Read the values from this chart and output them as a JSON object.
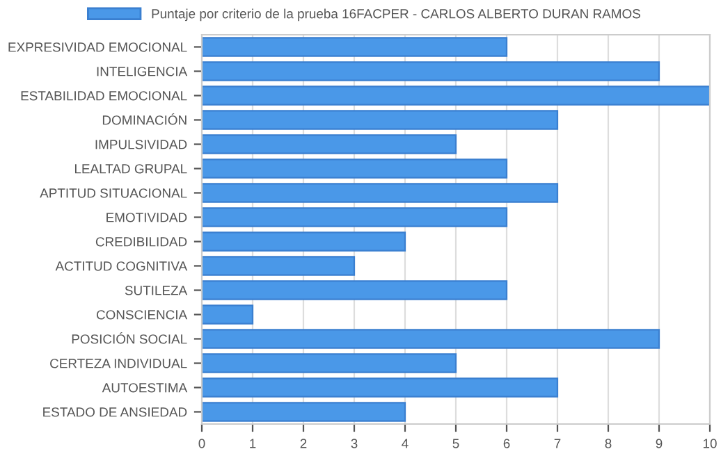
{
  "chart_data": {
    "type": "bar",
    "orientation": "horizontal",
    "categories": [
      "EXPRESIVIDAD EMOCIONAL",
      "INTELIGENCIA",
      "ESTABILIDAD EMOCIONAL",
      "DOMINACIÓN",
      "IMPULSIVIDAD",
      "LEALTAD GRUPAL",
      "APTITUD SITUACIONAL",
      "EMOTIVIDAD",
      "CREDIBILIDAD",
      "ACTITUD COGNITIVA",
      "SUTILEZA",
      "CONSCIENCIA",
      "POSICIÓN SOCIAL",
      "CERTEZA INDIVIDUAL",
      "AUTOESTIMA",
      "ESTADO DE ANSIEDAD"
    ],
    "series": [
      {
        "name": "Puntaje por criterio de la prueba 16FACPER - CARLOS ALBERTO DURAN RAMOS",
        "color": "#4a98e8",
        "values": [
          6,
          9,
          10,
          7,
          5,
          6,
          7,
          6,
          4,
          3,
          6,
          1,
          9,
          5,
          7,
          4
        ]
      }
    ],
    "xlim": [
      0,
      10
    ],
    "xticks": [
      0,
      1,
      2,
      3,
      4,
      5,
      6,
      7,
      8,
      9,
      10
    ],
    "grid": "x",
    "legend": "top"
  }
}
